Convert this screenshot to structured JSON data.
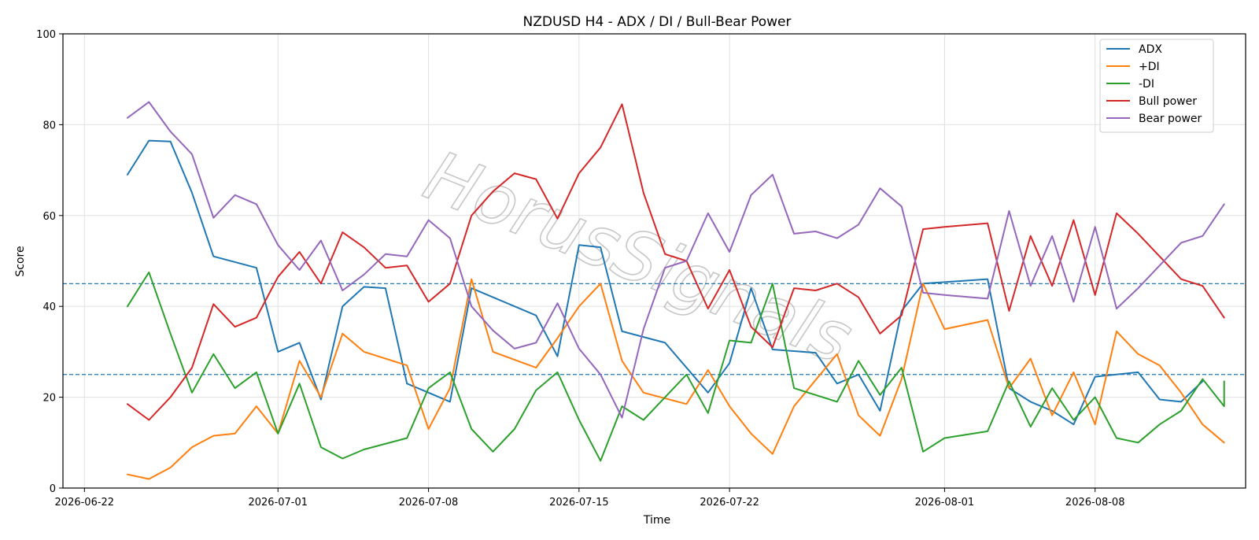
{
  "chart_data": {
    "type": "line",
    "title": "NZDUSD H4 - ADX / DI / Bull-Bear Power",
    "xlabel": "Time",
    "ylabel": "Score",
    "ylim": [
      0,
      100
    ],
    "yticks": [
      0,
      20,
      40,
      60,
      80,
      100
    ],
    "xlim": [
      "2026-06-21",
      "2026-08-15"
    ],
    "xticks": [
      "2026-06-22",
      "2026-07-01",
      "2026-07-08",
      "2026-07-15",
      "2026-07-22",
      "2026-08-01",
      "2026-08-08"
    ],
    "grid": true,
    "legend_position": "top-right",
    "reference_lines": [
      45,
      25
    ],
    "watermark": "HorusSignals",
    "series": [
      {
        "name": "ADX",
        "color": "#1f77b4",
        "points": [
          [
            "2026-06-24",
            69
          ],
          [
            "2026-06-25",
            76.5
          ],
          [
            "2026-06-26",
            76.3
          ],
          [
            "2026-06-27",
            65
          ],
          [
            "2026-06-28",
            51
          ],
          [
            "2026-06-30",
            48.5
          ],
          [
            "2026-07-01",
            30
          ],
          [
            "2026-07-02",
            32
          ],
          [
            "2026-07-03",
            19.5
          ],
          [
            "2026-07-04",
            40
          ],
          [
            "2026-07-05",
            44.3
          ],
          [
            "2026-07-06",
            44
          ],
          [
            "2026-07-07",
            23
          ],
          [
            "2026-07-08",
            21
          ],
          [
            "2026-07-09",
            19
          ],
          [
            "2026-07-10",
            44
          ],
          [
            "2026-07-13",
            38
          ],
          [
            "2026-07-14",
            29
          ],
          [
            "2026-07-15",
            53.5
          ],
          [
            "2026-07-16",
            53
          ],
          [
            "2026-07-17",
            34.5
          ],
          [
            "2026-07-19",
            32
          ],
          [
            "2026-07-21",
            21
          ],
          [
            "2026-07-22",
            27.5
          ],
          [
            "2026-07-23",
            44
          ],
          [
            "2026-07-24",
            30.5
          ],
          [
            "2026-07-26",
            29.8
          ],
          [
            "2026-07-27",
            23
          ],
          [
            "2026-07-28",
            25
          ],
          [
            "2026-07-29",
            17
          ],
          [
            "2026-07-30",
            39
          ],
          [
            "2026-07-31",
            45
          ],
          [
            "2026-08-03",
            46
          ],
          [
            "2026-08-04",
            22
          ],
          [
            "2026-08-05",
            19
          ],
          [
            "2026-08-06",
            17
          ],
          [
            "2026-08-07",
            14
          ],
          [
            "2026-08-08",
            24.5
          ],
          [
            "2026-08-10",
            25.5
          ],
          [
            "2026-08-11",
            19.5
          ],
          [
            "2026-08-12",
            19
          ],
          [
            "2026-08-13",
            23.5
          ]
        ]
      },
      {
        "name": "+DI",
        "color": "#ff7f0e",
        "points": [
          [
            "2026-06-24",
            3
          ],
          [
            "2026-06-25",
            2
          ],
          [
            "2026-06-26",
            4.5
          ],
          [
            "2026-06-27",
            9
          ],
          [
            "2026-06-28",
            11.5
          ],
          [
            "2026-06-29",
            12
          ],
          [
            "2026-06-30",
            18
          ],
          [
            "2026-07-01",
            12
          ],
          [
            "2026-07-02",
            28
          ],
          [
            "2026-07-03",
            20
          ],
          [
            "2026-07-04",
            34
          ],
          [
            "2026-07-05",
            30
          ],
          [
            "2026-07-07",
            27
          ],
          [
            "2026-07-08",
            13
          ],
          [
            "2026-07-09",
            22
          ],
          [
            "2026-07-10",
            46
          ],
          [
            "2026-07-11",
            30
          ],
          [
            "2026-07-13",
            26.5
          ],
          [
            "2026-07-14",
            33
          ],
          [
            "2026-07-15",
            40
          ],
          [
            "2026-07-16",
            45
          ],
          [
            "2026-07-17",
            28
          ],
          [
            "2026-07-18",
            21
          ],
          [
            "2026-07-20",
            18.5
          ],
          [
            "2026-07-21",
            26
          ],
          [
            "2026-07-22",
            18
          ],
          [
            "2026-07-23",
            12
          ],
          [
            "2026-07-24",
            7.5
          ],
          [
            "2026-07-25",
            18
          ],
          [
            "2026-07-27",
            29.5
          ],
          [
            "2026-07-28",
            16
          ],
          [
            "2026-07-29",
            11.5
          ],
          [
            "2026-07-30",
            24
          ],
          [
            "2026-07-31",
            45
          ],
          [
            "2026-08-01",
            35
          ],
          [
            "2026-08-03",
            37
          ],
          [
            "2026-08-04",
            22
          ],
          [
            "2026-08-05",
            28.5
          ],
          [
            "2026-08-06",
            16
          ],
          [
            "2026-08-07",
            25.5
          ],
          [
            "2026-08-08",
            14
          ],
          [
            "2026-08-09",
            34.5
          ],
          [
            "2026-08-10",
            29.5
          ],
          [
            "2026-08-11",
            27
          ],
          [
            "2026-08-12",
            21
          ],
          [
            "2026-08-13",
            14
          ],
          [
            "2026-08-14",
            10
          ]
        ]
      },
      {
        "name": "-DI",
        "color": "#2ca02c",
        "points": [
          [
            "2026-06-24",
            40
          ],
          [
            "2026-06-25",
            47.5
          ],
          [
            "2026-06-26",
            34
          ],
          [
            "2026-06-27",
            21
          ],
          [
            "2026-06-28",
            29.5
          ],
          [
            "2026-06-29",
            22
          ],
          [
            "2026-06-30",
            25.5
          ],
          [
            "2026-07-01",
            12
          ],
          [
            "2026-07-02",
            23
          ],
          [
            "2026-07-03",
            9
          ],
          [
            "2026-07-04",
            6.5
          ],
          [
            "2026-07-05",
            8.5
          ],
          [
            "2026-07-07",
            11
          ],
          [
            "2026-07-08",
            22
          ],
          [
            "2026-07-09",
            25.5
          ],
          [
            "2026-07-10",
            13
          ],
          [
            "2026-07-11",
            8
          ],
          [
            "2026-07-12",
            13
          ],
          [
            "2026-07-13",
            21.5
          ],
          [
            "2026-07-14",
            25.5
          ],
          [
            "2026-07-15",
            15
          ],
          [
            "2026-07-16",
            6
          ],
          [
            "2026-07-17",
            18
          ],
          [
            "2026-07-18",
            15
          ],
          [
            "2026-07-20",
            25
          ],
          [
            "2026-07-21",
            16.5
          ],
          [
            "2026-07-22",
            32.5
          ],
          [
            "2026-07-23",
            32
          ],
          [
            "2026-07-24",
            45
          ],
          [
            "2026-07-25",
            22
          ],
          [
            "2026-07-27",
            19
          ],
          [
            "2026-07-28",
            28
          ],
          [
            "2026-07-29",
            20.5
          ],
          [
            "2026-07-30",
            26.5
          ],
          [
            "2026-07-31",
            8
          ],
          [
            "2026-08-01",
            11
          ],
          [
            "2026-08-03",
            12.5
          ],
          [
            "2026-08-04",
            23.5
          ],
          [
            "2026-08-05",
            13.5
          ],
          [
            "2026-08-06",
            22
          ],
          [
            "2026-08-07",
            15
          ],
          [
            "2026-08-08",
            20
          ],
          [
            "2026-08-09",
            11
          ],
          [
            "2026-08-10",
            10
          ],
          [
            "2026-08-11",
            14
          ],
          [
            "2026-08-12",
            17
          ],
          [
            "2026-08-13",
            24
          ],
          [
            "2026-08-14",
            18
          ],
          [
            "2026-08-14",
            23.5
          ]
        ]
      },
      {
        "name": "Bull power",
        "color": "#d62728",
        "points": [
          [
            "2026-06-24",
            18.5
          ],
          [
            "2026-06-25",
            15
          ],
          [
            "2026-06-26",
            20
          ],
          [
            "2026-06-27",
            26.5
          ],
          [
            "2026-06-28",
            40.5
          ],
          [
            "2026-06-29",
            35.5
          ],
          [
            "2026-06-30",
            37.5
          ],
          [
            "2026-07-01",
            46.5
          ],
          [
            "2026-07-02",
            52
          ],
          [
            "2026-07-03",
            45
          ],
          [
            "2026-07-04",
            56.3
          ],
          [
            "2026-07-05",
            53
          ],
          [
            "2026-07-06",
            48.5
          ],
          [
            "2026-07-07",
            49
          ],
          [
            "2026-07-08",
            41
          ],
          [
            "2026-07-09",
            45
          ],
          [
            "2026-07-10",
            60
          ],
          [
            "2026-07-11",
            65.3
          ],
          [
            "2026-07-12",
            69.3
          ],
          [
            "2026-07-13",
            68
          ],
          [
            "2026-07-14",
            59.3
          ],
          [
            "2026-07-15",
            69.3
          ],
          [
            "2026-07-16",
            75
          ],
          [
            "2026-07-17",
            84.5
          ],
          [
            "2026-07-18",
            65
          ],
          [
            "2026-07-19",
            51.5
          ],
          [
            "2026-07-20",
            50
          ],
          [
            "2026-07-21",
            39.5
          ],
          [
            "2026-07-22",
            48
          ],
          [
            "2026-07-23",
            35.5
          ],
          [
            "2026-07-24",
            31
          ],
          [
            "2026-07-25",
            44
          ],
          [
            "2026-07-26",
            43.5
          ],
          [
            "2026-07-27",
            45
          ],
          [
            "2026-07-28",
            42
          ],
          [
            "2026-07-29",
            34
          ],
          [
            "2026-07-30",
            38
          ],
          [
            "2026-07-31",
            57
          ],
          [
            "2026-08-01",
            57.5
          ],
          [
            "2026-08-03",
            58.3
          ],
          [
            "2026-08-04",
            39
          ],
          [
            "2026-08-05",
            55.5
          ],
          [
            "2026-08-06",
            44.5
          ],
          [
            "2026-08-07",
            59
          ],
          [
            "2026-08-08",
            42.5
          ],
          [
            "2026-08-09",
            60.5
          ],
          [
            "2026-08-10",
            56
          ],
          [
            "2026-08-11",
            51
          ],
          [
            "2026-08-12",
            46
          ],
          [
            "2026-08-13",
            44.5
          ],
          [
            "2026-08-14",
            37.5
          ]
        ]
      },
      {
        "name": "Bear power",
        "color": "#9467bd",
        "points": [
          [
            "2026-06-24",
            81.5
          ],
          [
            "2026-06-25",
            85
          ],
          [
            "2026-06-26",
            78.5
          ],
          [
            "2026-06-27",
            73.5
          ],
          [
            "2026-06-28",
            59.5
          ],
          [
            "2026-06-29",
            64.5
          ],
          [
            "2026-06-30",
            62.5
          ],
          [
            "2026-07-01",
            53.5
          ],
          [
            "2026-07-02",
            48
          ],
          [
            "2026-07-03",
            54.5
          ],
          [
            "2026-07-04",
            43.5
          ],
          [
            "2026-07-05",
            47
          ],
          [
            "2026-07-06",
            51.5
          ],
          [
            "2026-07-07",
            51
          ],
          [
            "2026-07-08",
            59
          ],
          [
            "2026-07-09",
            55
          ],
          [
            "2026-07-10",
            40
          ],
          [
            "2026-07-11",
            34.7
          ],
          [
            "2026-07-12",
            30.7
          ],
          [
            "2026-07-13",
            32
          ],
          [
            "2026-07-14",
            40.7
          ],
          [
            "2026-07-15",
            30.7
          ],
          [
            "2026-07-16",
            25
          ],
          [
            "2026-07-17",
            15.5
          ],
          [
            "2026-07-18",
            35
          ],
          [
            "2026-07-19",
            48.5
          ],
          [
            "2026-07-20",
            50
          ],
          [
            "2026-07-21",
            60.5
          ],
          [
            "2026-07-22",
            52
          ],
          [
            "2026-07-23",
            64.5
          ],
          [
            "2026-07-24",
            69
          ],
          [
            "2026-07-25",
            56
          ],
          [
            "2026-07-26",
            56.5
          ],
          [
            "2026-07-27",
            55
          ],
          [
            "2026-07-28",
            58
          ],
          [
            "2026-07-29",
            66
          ],
          [
            "2026-07-30",
            62
          ],
          [
            "2026-07-31",
            43
          ],
          [
            "2026-08-01",
            42.5
          ],
          [
            "2026-08-03",
            41.7
          ],
          [
            "2026-08-04",
            61
          ],
          [
            "2026-08-05",
            44.5
          ],
          [
            "2026-08-06",
            55.5
          ],
          [
            "2026-08-07",
            41
          ],
          [
            "2026-08-08",
            57.5
          ],
          [
            "2026-08-09",
            39.5
          ],
          [
            "2026-08-10",
            44
          ],
          [
            "2026-08-11",
            49
          ],
          [
            "2026-08-12",
            54
          ],
          [
            "2026-08-13",
            55.5
          ],
          [
            "2026-08-14",
            62.5
          ]
        ]
      }
    ]
  }
}
